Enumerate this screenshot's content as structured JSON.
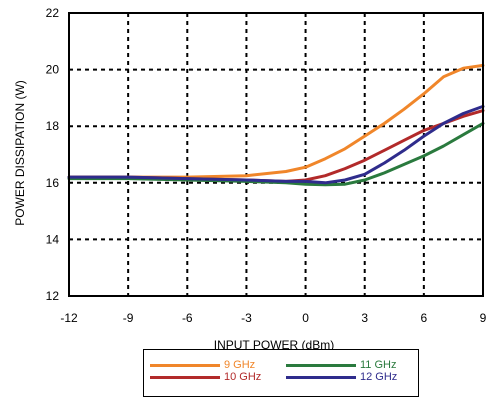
{
  "chart_data": {
    "type": "line",
    "title": "",
    "xlabel": "INPUT POWER (dBm)",
    "ylabel": "POWER DISSIPATION (W)",
    "xlim": [
      -12,
      9
    ],
    "ylim": [
      12,
      22
    ],
    "xticks": [
      -12,
      -9,
      -6,
      -3,
      0,
      3,
      6,
      9
    ],
    "yticks": [
      12,
      14,
      16,
      18,
      20,
      22
    ],
    "grid": "dashed",
    "legend_position": "bottom",
    "series": [
      {
        "name": "9 GHz",
        "color": "#f0862a",
        "x": [
          -12,
          -9,
          -6,
          -3,
          -1,
          0,
          1,
          2,
          3,
          4,
          5,
          6,
          7,
          8,
          9
        ],
        "y": [
          16.2,
          16.2,
          16.2,
          16.25,
          16.4,
          16.55,
          16.85,
          17.2,
          17.65,
          18.1,
          18.6,
          19.15,
          19.75,
          20.05,
          20.15
        ]
      },
      {
        "name": "10 GHz",
        "color": "#b22a2a",
        "x": [
          -12,
          -9,
          -6,
          -3,
          -1,
          0,
          1,
          2,
          3,
          4,
          5,
          6,
          7,
          8,
          9
        ],
        "y": [
          16.2,
          16.2,
          16.15,
          16.1,
          16.05,
          16.1,
          16.25,
          16.5,
          16.8,
          17.15,
          17.5,
          17.85,
          18.1,
          18.35,
          18.55
        ]
      },
      {
        "name": "11 GHz",
        "color": "#2a7a3e",
        "x": [
          -12,
          -9,
          -6,
          -3,
          -1,
          0,
          1,
          2,
          3,
          4,
          5,
          6,
          7,
          8,
          9
        ],
        "y": [
          16.15,
          16.15,
          16.1,
          16.05,
          16.0,
          15.95,
          15.93,
          15.95,
          16.1,
          16.35,
          16.65,
          16.95,
          17.3,
          17.7,
          18.1
        ]
      },
      {
        "name": "12 GHz",
        "color": "#2f2c8c",
        "x": [
          -12,
          -9,
          -6,
          -3,
          -1,
          0,
          1,
          2,
          3,
          4,
          5,
          6,
          7,
          8,
          9
        ],
        "y": [
          16.2,
          16.2,
          16.15,
          16.1,
          16.05,
          16.05,
          16.0,
          16.1,
          16.3,
          16.7,
          17.15,
          17.65,
          18.1,
          18.45,
          18.7
        ]
      }
    ]
  }
}
